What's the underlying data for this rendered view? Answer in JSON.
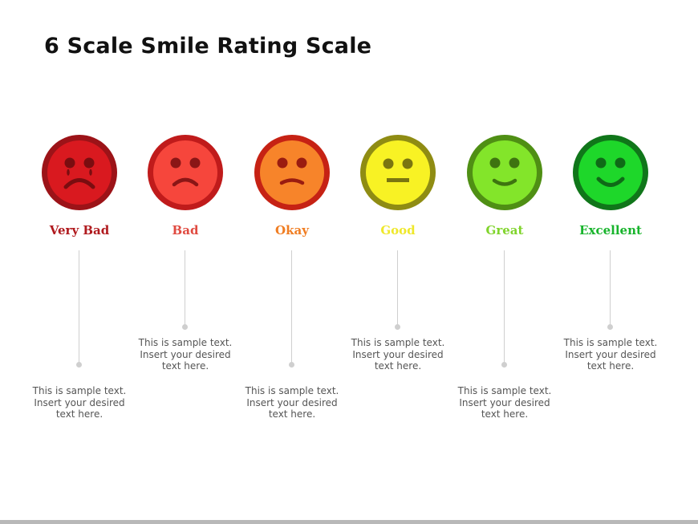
{
  "title": "6 Scale Smile Rating Scale",
  "scale": [
    {
      "label": "Very Bad",
      "label_color": "#b01a1e",
      "face_color": "#d9191f",
      "ring_color": "#9c1318",
      "feature_color": "#7a0d10",
      "expression": "crying-frown",
      "desc": [
        "This is sample  text.",
        "Insert your desired",
        "text here."
      ]
    },
    {
      "label": "Bad",
      "label_color": "#e04a40",
      "face_color": "#f6463c",
      "ring_color": "#c01b1b",
      "feature_color": "#8a1616",
      "expression": "frown",
      "desc": [
        "This is sample  text.",
        "Insert your desired",
        "text here."
      ]
    },
    {
      "label": "Okay",
      "label_color": "#f07d22",
      "face_color": "#f7842a",
      "ring_color": "#c62214",
      "feature_color": "#9a1c10",
      "expression": "slight-frown",
      "desc": [
        "This is sample  text.",
        "Insert your desired",
        "text here."
      ]
    },
    {
      "label": "Good",
      "label_color": "#efe82a",
      "face_color": "#f8f224",
      "ring_color": "#8f8c13",
      "feature_color": "#7a7510",
      "expression": "neutral",
      "desc": [
        "This is sample  text.",
        "Insert your desired",
        "text here."
      ]
    },
    {
      "label": "Great",
      "label_color": "#80d42c",
      "face_color": "#83e52a",
      "ring_color": "#4f8f14",
      "feature_color": "#3e7410",
      "expression": "smile",
      "desc": [
        "This is sample  text.",
        "Insert your desired",
        "text here."
      ]
    },
    {
      "label": "Excellent",
      "label_color": "#18b42c",
      "face_color": "#1ed72a",
      "ring_color": "#10761a",
      "feature_color": "#0f6a17",
      "expression": "big-smile",
      "desc": [
        "This is sample  text.",
        "Insert your desired",
        "text here."
      ]
    }
  ]
}
